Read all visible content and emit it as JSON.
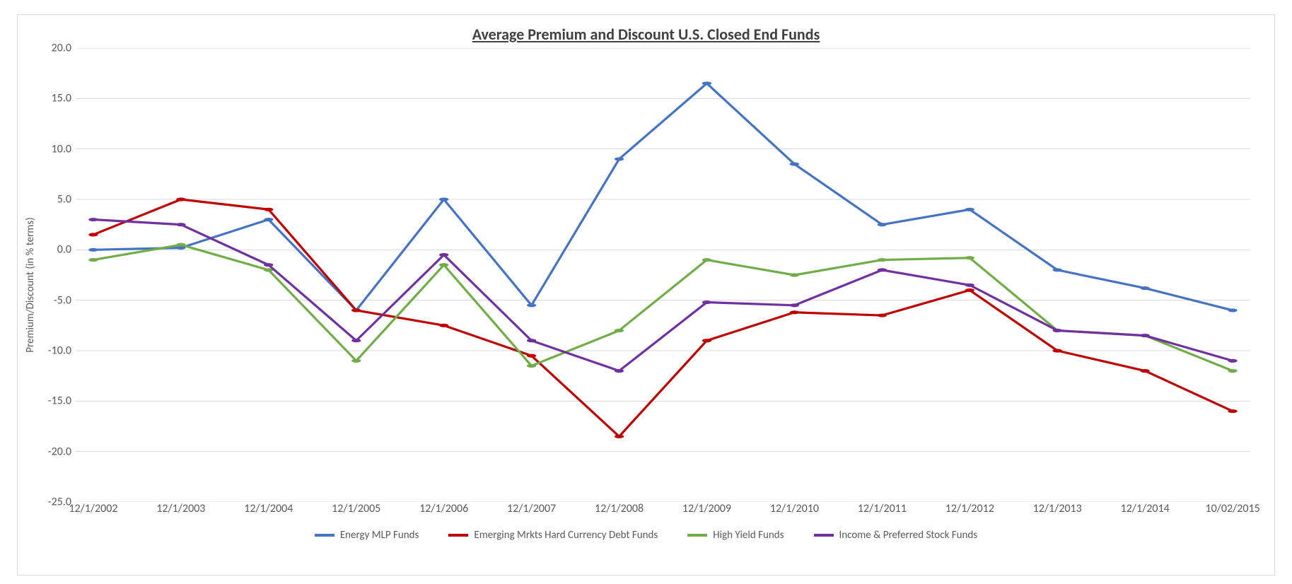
{
  "chart": {
    "type": "line",
    "title": "Average Premium and Discount U.S. Closed End Funds",
    "title_fontsize": 22,
    "title_color": "#404040",
    "ylabel": "Premium/Discount (in % terms)",
    "ylabel_fontsize": 15,
    "axis_label_color": "#595959",
    "tick_fontsize": 16,
    "legend_fontsize": 15,
    "background_color": "#ffffff",
    "border_color": "#d9d9d9",
    "grid_color": "#d9d9d9",
    "ylim": [
      -25.0,
      20.0
    ],
    "ytick_step": 5.0,
    "ytick_labels": [
      "-25.0",
      "-20.0",
      "-15.0",
      "-10.0",
      "-5.0",
      "0.0",
      "5.0",
      "10.0",
      "15.0",
      "20.0"
    ],
    "x_categories": [
      "12/1/2002",
      "12/1/2003",
      "12/1/2004",
      "12/1/2005",
      "12/1/2006",
      "12/1/2007",
      "12/1/2008",
      "12/1/2009",
      "12/1/2010",
      "12/1/2011",
      "12/1/2012",
      "12/1/2013",
      "12/1/2014",
      "10/02/2015"
    ],
    "line_width": 3.2,
    "marker_size": 4,
    "legend_swatch_w": 28,
    "legend_swatch_h": 4,
    "series": [
      {
        "name": "Energy MLP Funds",
        "color": "#4472c4",
        "values": [
          0.0,
          0.2,
          3.0,
          -6.0,
          5.0,
          -5.5,
          9.0,
          16.5,
          8.5,
          2.5,
          4.0,
          -2.0,
          -3.8,
          -6.0
        ]
      },
      {
        "name": "Emerging Mrkts Hard Currency Debt Funds",
        "color": "#c00000",
        "values": [
          1.5,
          5.0,
          4.0,
          -6.0,
          -7.5,
          -10.5,
          -18.5,
          -9.0,
          -6.2,
          -6.5,
          -4.0,
          -10.0,
          -12.0,
          -16.0
        ]
      },
      {
        "name": "High Yield Funds",
        "color": "#70ad47",
        "values": [
          -1.0,
          0.5,
          -2.0,
          -11.0,
          -1.5,
          -11.5,
          -8.0,
          -1.0,
          -2.5,
          -1.0,
          -0.8,
          -8.0,
          -8.5,
          -12.0
        ]
      },
      {
        "name": "Income & Preferred Stock Funds",
        "color": "#7030a0",
        "values": [
          3.0,
          2.5,
          -1.5,
          -9.0,
          -0.5,
          -9.0,
          -12.0,
          -5.2,
          -5.5,
          -2.0,
          -3.5,
          -8.0,
          -8.5,
          -11.0
        ]
      }
    ]
  }
}
